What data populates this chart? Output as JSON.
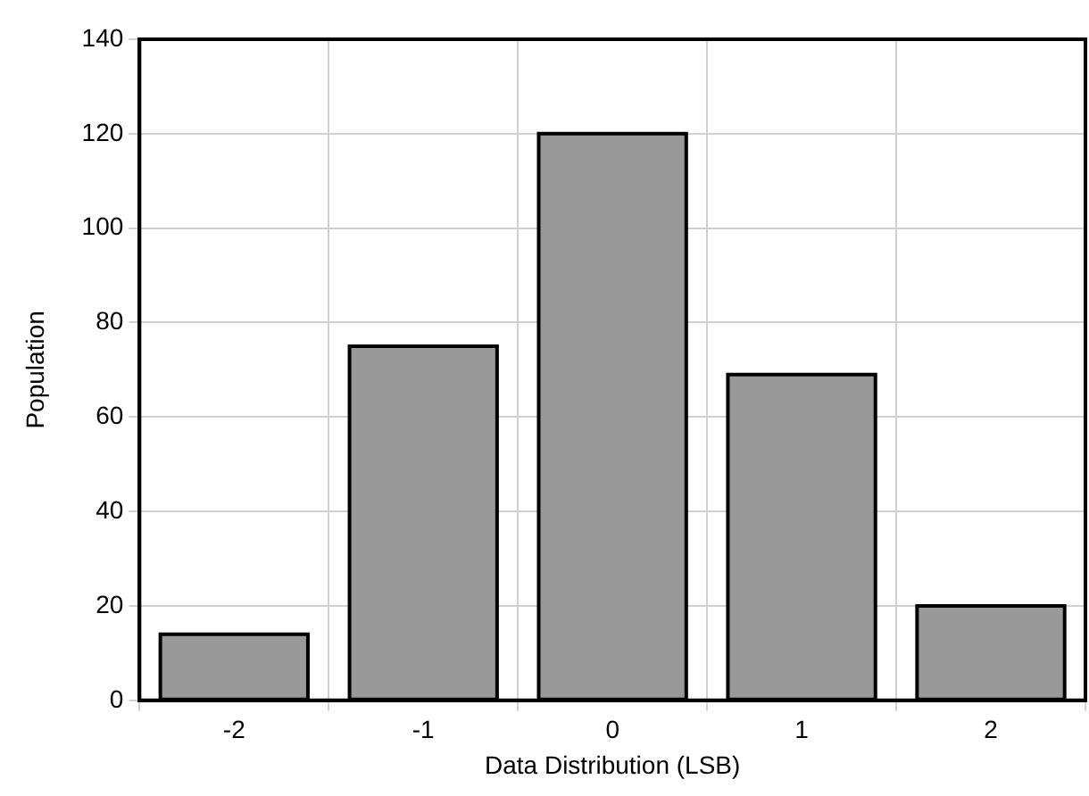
{
  "chart_data": {
    "type": "bar",
    "xlabel": "Data Distribution (LSB)",
    "ylabel": "Population",
    "categories": [
      "-2",
      "-1",
      "0",
      "1",
      "2"
    ],
    "values": [
      14,
      75,
      120,
      69,
      20
    ],
    "color": "#999999",
    "ylim": [
      0,
      140
    ],
    "yticks": [
      0,
      20,
      40,
      60,
      80,
      100,
      120,
      140
    ],
    "grid": true
  }
}
